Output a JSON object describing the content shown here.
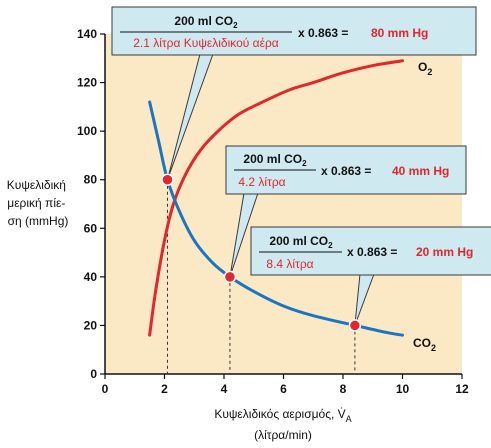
{
  "chart_data": {
    "type": "line",
    "xlabel": "Κυψελιδικός αερισμός, V̇",
    "xlabel_sub": "A",
    "xlabel_unit": "(λίτρα/min)",
    "ylabel_lines": [
      "Κυψελιδική",
      "μερική πίε-",
      "ση (mmHg)"
    ],
    "xlim": [
      0,
      12
    ],
    "ylim": [
      0,
      140
    ],
    "xticks": [
      "0",
      "2",
      "4",
      "6",
      "8",
      "10",
      "12"
    ],
    "yticks": [
      "0",
      "20",
      "40",
      "60",
      "80",
      "100",
      "120",
      "140"
    ],
    "series": [
      {
        "name": "O",
        "name_sub": "2",
        "color": "#e3262b",
        "x": [
          1.5,
          1.7,
          2.0,
          2.3,
          2.7,
          3.2,
          3.8,
          4.5,
          5.3,
          6.2,
          7.0,
          8.0,
          9.0,
          10.0
        ],
        "y": [
          16,
          34,
          55,
          70,
          82,
          92,
          100,
          107,
          112,
          117,
          120,
          124,
          127,
          129
        ]
      },
      {
        "name": "CO",
        "name_sub": "2",
        "color": "#1a75c2",
        "x": [
          1.5,
          1.8,
          2.1,
          2.5,
          3.0,
          3.6,
          4.2,
          5.0,
          6.0,
          7.0,
          8.4,
          9.5,
          10.0
        ],
        "y": [
          112,
          96,
          80,
          67,
          55,
          46,
          40,
          34,
          28,
          24,
          20,
          17,
          16
        ]
      }
    ],
    "points": [
      {
        "x": 2.1,
        "y": 80
      },
      {
        "x": 4.2,
        "y": 40
      },
      {
        "x": 8.4,
        "y": 20
      }
    ],
    "annotations": [
      {
        "numerator": "200 ml CO",
        "num_sub": "2",
        "denominator": "2.1 λίτρα Κυψελιδικού αέρα",
        "multiplier": "x 0.863 =",
        "result": "80 mm Hg"
      },
      {
        "numerator": "200 ml CO",
        "num_sub": "2",
        "denominator": "4.2 λίτρα",
        "multiplier": "x 0.863 =",
        "result": "40 mm Hg"
      },
      {
        "numerator": "200 ml CO",
        "num_sub": "2",
        "denominator": "8.4 λίτρα",
        "multiplier": "x 0.863 =",
        "result": "20 mm Hg"
      }
    ],
    "colors": {
      "plot_bg": "#fbe9c6",
      "box_bg": "#cfe9f0",
      "box_border": "#3a3a3a",
      "point": "#e3262b",
      "point_ring": "#ffffff",
      "red_text": "#e3262b"
    },
    "grid": false
  }
}
